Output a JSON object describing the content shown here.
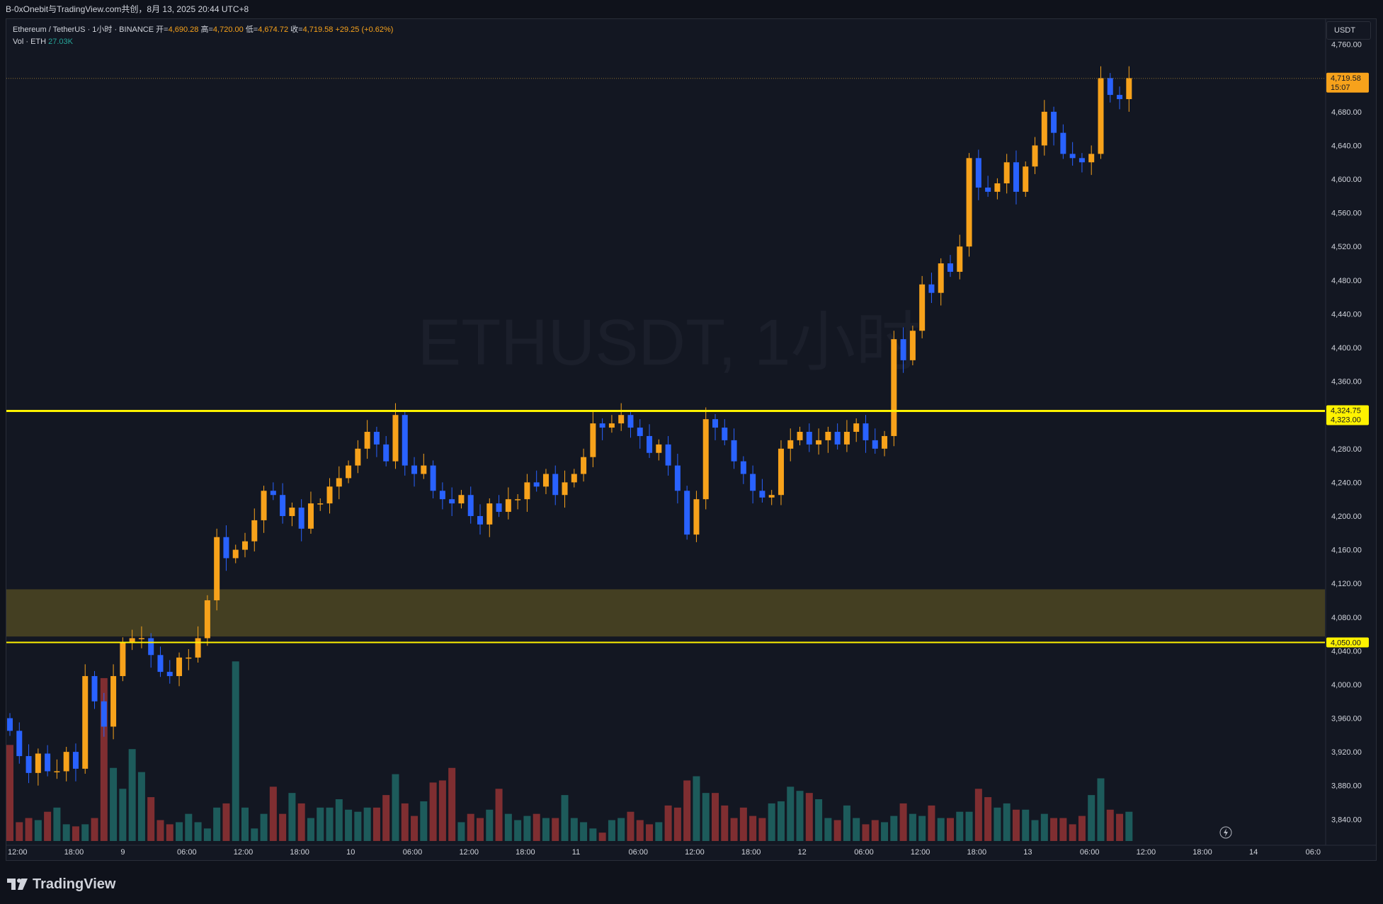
{
  "header": {
    "title": "B-0xOnebit与TradingView.com共创，8月 13, 2025 20:44 UTC+8"
  },
  "legend": {
    "symbol": "Ethereum / TetherUS · 1小时 · BINANCE",
    "open_label": "开=",
    "open": "4,690.28",
    "high_label": "高=",
    "high": "4,720.00",
    "low_label": "低=",
    "low": "4,674.72",
    "close_label": "收=",
    "close": "4,719.58",
    "change": "+29.25 (+0.62%)",
    "vol_label": "Vol · ETH",
    "vol_value": "27.03K"
  },
  "watermark": "ETHUSDT, 1小时",
  "unit_button": "USDT",
  "footer_logo": "TradingView",
  "colors": {
    "up": "#f7a21b",
    "down": "#2962ff",
    "vol_up": "#1d5b5b",
    "vol_down": "#7f2e31",
    "level_line": "#fff200",
    "zone": "#4d4622",
    "background": "#131722"
  },
  "chart_data": {
    "type": "candlestick",
    "interval": "1h",
    "x_start": "2025-08-08 12:00",
    "x_tick_labels": [
      "12:00",
      "18:00",
      "9",
      "06:00",
      "12:00",
      "18:00",
      "10",
      "06:00",
      "12:00",
      "18:00",
      "11",
      "06:00",
      "12:00",
      "18:00",
      "12",
      "06:00",
      "12:00",
      "18:00",
      "13",
      "06:00",
      "12:00",
      "18:00",
      "14",
      "06:0"
    ],
    "y_range": [
      3810,
      4790
    ],
    "y_tick_labels": [
      "4,760.00",
      "4,680.00",
      "4,640.00",
      "4,600.00",
      "4,560.00",
      "4,520.00",
      "4,480.00",
      "4,440.00",
      "4,400.00",
      "4,360.00",
      "4,280.00",
      "4,240.00",
      "4,200.00",
      "4,160.00",
      "4,120.00",
      "4,080.00",
      "4,040.00",
      "4,000.00",
      "3,960.00",
      "3,920.00",
      "3,880.00",
      "3,840.00"
    ],
    "y_ticks": [
      4760,
      4680,
      4640,
      4600,
      4560,
      4520,
      4480,
      4440,
      4400,
      4360,
      4280,
      4240,
      4200,
      4160,
      4120,
      4080,
      4040,
      4000,
      3960,
      3920,
      3880,
      3840
    ],
    "price_levels": [
      {
        "price": 4324.75,
        "label": "4,324.75"
      },
      {
        "price": 4323.0,
        "label": "4,323.00"
      },
      {
        "price": 4050.0,
        "label": "4,050.00"
      }
    ],
    "zone": {
      "from": 4057,
      "to": 4113
    },
    "current_price": {
      "price": 4719.58,
      "label": "4,719.58",
      "countdown": "15:07"
    },
    "closes": [
      3945,
      3915,
      3895,
      3918,
      3897,
      3897,
      3920,
      3900,
      4010,
      3980,
      3950,
      4010,
      4050,
      4055,
      4055,
      4035,
      4015,
      4010,
      4032,
      4032,
      4055,
      4100,
      4175,
      4150,
      4160,
      4170,
      4195,
      4230,
      4225,
      4200,
      4210,
      4185,
      4215,
      4215,
      4235,
      4245,
      4260,
      4280,
      4300,
      4285,
      4265,
      4320,
      4260,
      4250,
      4260,
      4230,
      4220,
      4215,
      4225,
      4200,
      4190,
      4215,
      4205,
      4220,
      4220,
      4240,
      4235,
      4250,
      4225,
      4240,
      4250,
      4270,
      4310,
      4305,
      4310,
      4320,
      4305,
      4295,
      4275,
      4285,
      4260,
      4230,
      4178,
      4220,
      4315,
      4305,
      4290,
      4265,
      4250,
      4230,
      4222,
      4225,
      4280,
      4290,
      4300,
      4285,
      4290,
      4300,
      4285,
      4300,
      4310,
      4290,
      4280,
      4295,
      4410,
      4385,
      4420,
      4475,
      4465,
      4500,
      4490,
      4520,
      4625,
      4590,
      4585,
      4595,
      4620,
      4585,
      4615,
      4640,
      4680,
      4655,
      4630,
      4625,
      4620,
      4630,
      4720,
      4700,
      4695,
      4720
    ],
    "volume_relative": [
      0.46,
      0.09,
      0.11,
      0.1,
      0.14,
      0.16,
      0.08,
      0.07,
      0.08,
      0.11,
      0.78,
      0.35,
      0.25,
      0.44,
      0.33,
      0.21,
      0.1,
      0.08,
      0.09,
      0.13,
      0.09,
      0.06,
      0.16,
      0.18,
      0.86,
      0.16,
      0.06,
      0.13,
      0.26,
      0.13,
      0.23,
      0.18,
      0.11,
      0.16,
      0.16,
      0.2,
      0.15,
      0.14,
      0.16,
      0.16,
      0.22,
      0.32,
      0.18,
      0.12,
      0.19,
      0.28,
      0.29,
      0.35,
      0.09,
      0.13,
      0.11,
      0.15,
      0.25,
      0.13,
      0.1,
      0.12,
      0.13,
      0.11,
      0.11,
      0.22,
      0.11,
      0.09,
      0.06,
      0.04,
      0.1,
      0.11,
      0.14,
      0.1,
      0.08,
      0.09,
      0.17,
      0.16,
      0.29,
      0.31,
      0.23,
      0.23,
      0.17,
      0.11,
      0.16,
      0.12,
      0.11,
      0.18,
      0.19,
      0.26,
      0.24,
      0.23,
      0.2,
      0.11,
      0.1,
      0.17,
      0.11,
      0.08,
      0.1,
      0.09,
      0.12,
      0.18,
      0.13,
      0.12,
      0.17,
      0.11,
      0.11,
      0.14,
      0.14,
      0.25,
      0.21,
      0.16,
      0.18,
      0.15,
      0.15,
      0.1,
      0.13,
      0.11,
      0.11,
      0.08,
      0.12,
      0.22,
      0.3,
      0.15,
      0.13,
      0.14
    ]
  }
}
